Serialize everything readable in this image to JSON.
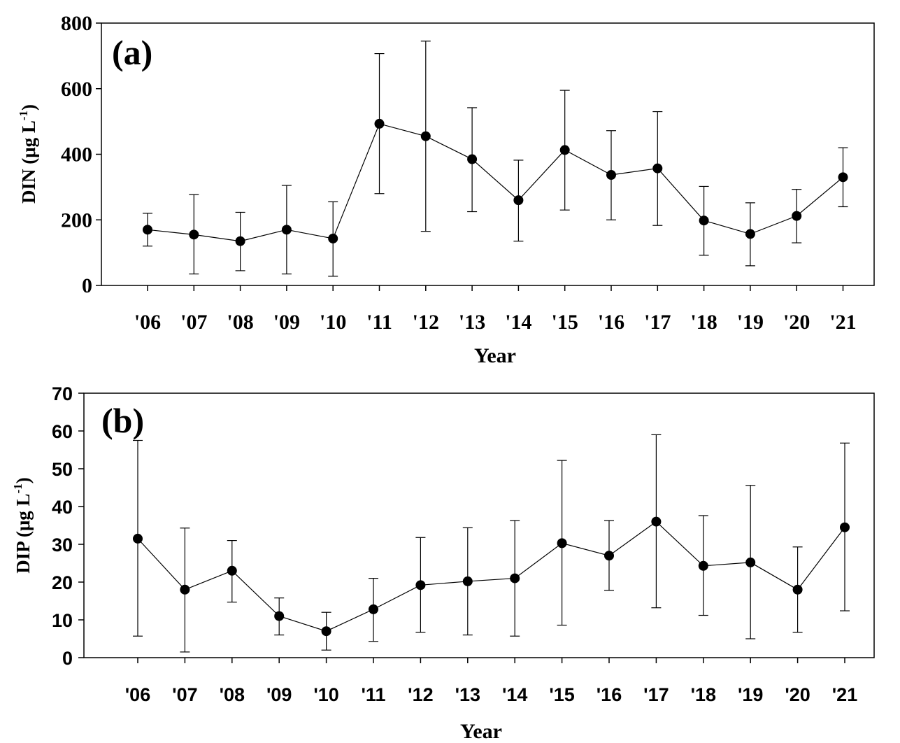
{
  "chart_data": [
    {
      "type": "line",
      "panel_label": "(a)",
      "xlabel": "Year",
      "ylabel_main": "DIN (μg L",
      "ylabel_sup": "-1",
      "ylabel_close": ")",
      "ylim": [
        0,
        800
      ],
      "yticks": [
        "0",
        "200",
        "400",
        "600",
        "800"
      ],
      "ytick_values": [
        0,
        200,
        400,
        600,
        800
      ],
      "categories": [
        "'06",
        "'07",
        "'08",
        "'09",
        "'10",
        "'11",
        "'12",
        "'13",
        "'14",
        "'15",
        "'16",
        "'17",
        "'18",
        "'19",
        "'20",
        "'21"
      ],
      "series": [
        {
          "values": [
            170,
            155,
            135,
            170,
            143,
            493,
            455,
            385,
            260,
            413,
            337,
            357,
            198,
            157,
            212,
            330
          ],
          "err_low": [
            120,
            35,
            45,
            35,
            28,
            280,
            165,
            225,
            135,
            230,
            200,
            183,
            92,
            60,
            130,
            240
          ],
          "err_high": [
            220,
            277,
            223,
            305,
            255,
            707,
            745,
            542,
            382,
            595,
            472,
            530,
            302,
            252,
            293,
            420
          ]
        }
      ],
      "grid": false,
      "font": "serif"
    },
    {
      "type": "line",
      "panel_label": "(b)",
      "xlabel": "Year",
      "ylabel_main": "DIP (μg L",
      "ylabel_sup": "-1",
      "ylabel_close": ")",
      "ylim": [
        0,
        70
      ],
      "yticks": [
        "0",
        "10",
        "20",
        "30",
        "40",
        "50",
        "60",
        "70"
      ],
      "ytick_values": [
        0,
        10,
        20,
        30,
        40,
        50,
        60,
        70
      ],
      "categories": [
        "'06",
        "'07",
        "'08",
        "'09",
        "'10",
        "'11",
        "'12",
        "'13",
        "'14",
        "'15",
        "'16",
        "'17",
        "'18",
        "'19",
        "'20",
        "'21"
      ],
      "series": [
        {
          "values": [
            31.5,
            18,
            23,
            11,
            7,
            12.8,
            19.2,
            20.2,
            21,
            30.3,
            27,
            36,
            24.3,
            25.2,
            18,
            34.5
          ],
          "err_low": [
            5.7,
            1.5,
            14.7,
            6,
            2,
            4.3,
            6.7,
            6,
            5.7,
            8.6,
            17.8,
            13.2,
            11.2,
            5,
            6.7,
            12.4
          ],
          "err_high": [
            57.5,
            34.3,
            31,
            15.8,
            12,
            21,
            31.8,
            34.4,
            36.3,
            52.2,
            36.3,
            59,
            37.6,
            45.6,
            29.3,
            56.8
          ]
        }
      ],
      "grid": false,
      "font": "sans"
    }
  ]
}
